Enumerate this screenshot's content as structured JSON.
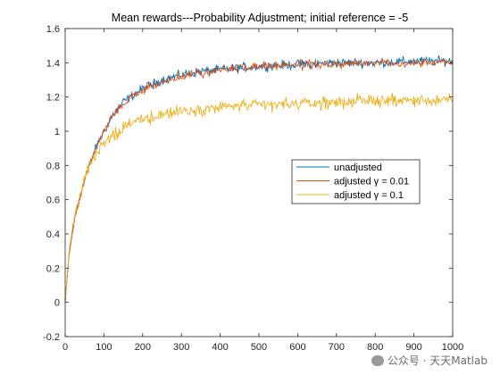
{
  "chart_data": {
    "type": "line",
    "title": "Mean rewards---Probability Adjustment; initial reference = -5",
    "xlabel": "",
    "ylabel": "",
    "xlim": [
      0,
      1000
    ],
    "ylim": [
      -0.2,
      1.6
    ],
    "xticks": [
      "0",
      "100",
      "200",
      "300",
      "400",
      "500",
      "600",
      "700",
      "800",
      "900",
      "1000"
    ],
    "yticks": [
      "-0.2",
      "0",
      "0.2",
      "0.4",
      "0.6",
      "0.8",
      "1",
      "1.2",
      "1.4",
      "1.6"
    ],
    "grid": false,
    "legend_position": "center-right",
    "series": [
      {
        "name": "unadjusted",
        "color": "#0072BD",
        "x": [
          0,
          10,
          25,
          50,
          75,
          100,
          125,
          150,
          175,
          200,
          250,
          300,
          350,
          400,
          450,
          500,
          600,
          700,
          800,
          900,
          1000
        ],
        "y": [
          0.0,
          0.28,
          0.5,
          0.72,
          0.88,
          1.0,
          1.1,
          1.17,
          1.21,
          1.25,
          1.3,
          1.33,
          1.35,
          1.36,
          1.37,
          1.38,
          1.39,
          1.4,
          1.4,
          1.41,
          1.41
        ],
        "noise": 0.022
      },
      {
        "name": "adjusted γ = 0.01",
        "color": "#D95319",
        "x": [
          0,
          10,
          25,
          50,
          75,
          100,
          125,
          150,
          175,
          200,
          250,
          300,
          350,
          400,
          450,
          500,
          600,
          700,
          800,
          900,
          1000
        ],
        "y": [
          0.0,
          0.28,
          0.5,
          0.72,
          0.88,
          1.0,
          1.1,
          1.16,
          1.2,
          1.24,
          1.29,
          1.32,
          1.34,
          1.36,
          1.37,
          1.38,
          1.39,
          1.39,
          1.4,
          1.4,
          1.41
        ],
        "noise": 0.02
      },
      {
        "name": "adjusted γ = 0.1",
        "color": "#EDB120",
        "x": [
          0,
          10,
          25,
          50,
          75,
          100,
          125,
          150,
          175,
          200,
          250,
          300,
          350,
          400,
          450,
          500,
          600,
          700,
          800,
          900,
          1000
        ],
        "y": [
          0.0,
          0.3,
          0.52,
          0.72,
          0.85,
          0.93,
          0.98,
          1.02,
          1.05,
          1.07,
          1.1,
          1.12,
          1.13,
          1.14,
          1.15,
          1.15,
          1.16,
          1.17,
          1.18,
          1.18,
          1.18
        ],
        "noise": 0.03
      }
    ]
  },
  "watermark": {
    "text": "公众号 · 天天Matlab"
  }
}
